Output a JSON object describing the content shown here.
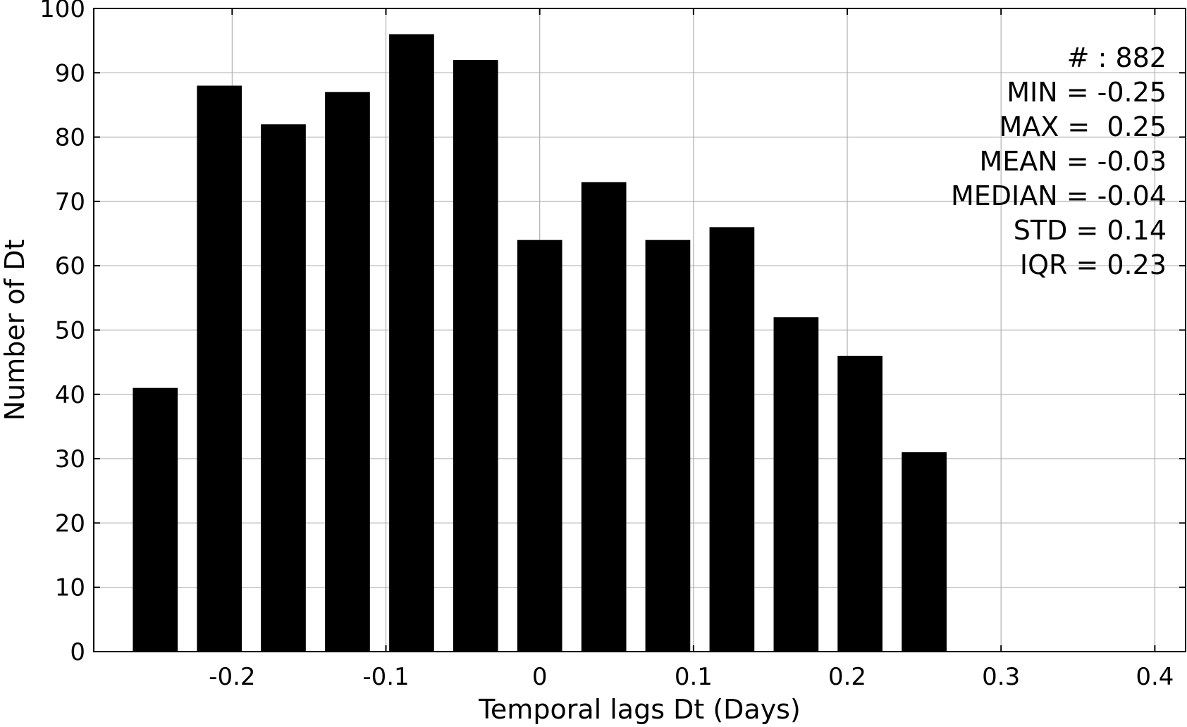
{
  "chart_data": {
    "type": "bar",
    "xlabel": "Temporal lags Dt (Days)",
    "ylabel": "Number of Dt",
    "xlim": [
      -0.29,
      0.42
    ],
    "ylim": [
      0,
      100
    ],
    "x_ticks": [
      -0.2,
      -0.1,
      0,
      0.1,
      0.2,
      0.3,
      0.4
    ],
    "x_tick_labels": [
      "-0.2",
      "-0.1",
      "0",
      "0.1",
      "0.2",
      "0.3",
      "0.4"
    ],
    "y_ticks": [
      0,
      10,
      20,
      30,
      40,
      50,
      60,
      70,
      80,
      90,
      100
    ],
    "y_tick_labels": [
      "0",
      "10",
      "20",
      "30",
      "40",
      "50",
      "60",
      "70",
      "80",
      "90",
      "100"
    ],
    "bin_width": 0.0417,
    "bar_width_fraction": 0.7,
    "bin_centers": [
      -0.25,
      -0.2083,
      -0.1667,
      -0.125,
      -0.0833,
      -0.0417,
      0,
      0.0417,
      0.0833,
      0.125,
      0.1667,
      0.2083,
      0.25
    ],
    "values": [
      41,
      88,
      82,
      87,
      96,
      92,
      64,
      73,
      64,
      66,
      52,
      46,
      31
    ],
    "bar_color": "#000000",
    "grid": true,
    "grid_color": "#b0b0b0",
    "annotation_placement": "top-right",
    "annotation_lines": [
      "# : 882",
      "MIN = -0.25",
      "MAX =  0.25",
      "MEAN = -0.03",
      "MEDIAN = -0.04",
      "STD = 0.14",
      "IQR = 0.23"
    ]
  }
}
